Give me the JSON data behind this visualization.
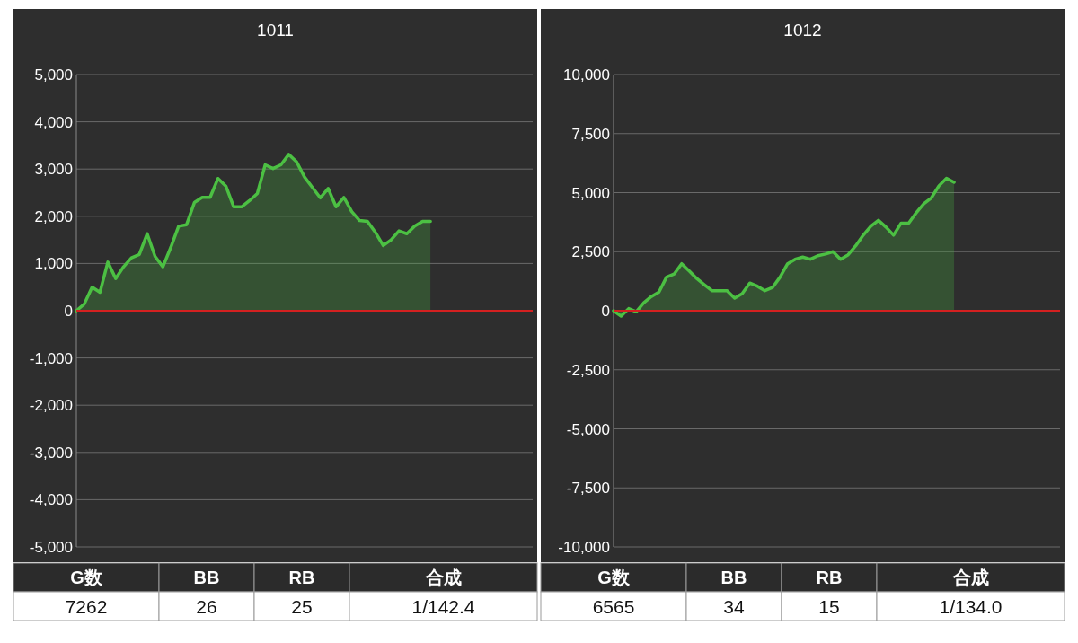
{
  "chart_data": [
    {
      "type": "area",
      "title": "1011",
      "categories": [
        null,
        null,
        null,
        null,
        null,
        null,
        null,
        null,
        null,
        null,
        null,
        null,
        null,
        null,
        null,
        null,
        null,
        null,
        null,
        null,
        null,
        null,
        null,
        null,
        null,
        null,
        null,
        null,
        null,
        null,
        null,
        null,
        null,
        null,
        null,
        null,
        null,
        null,
        null,
        null,
        null,
        null,
        null,
        null,
        null,
        null,
        null,
        null,
        null,
        null,
        null,
        null,
        null,
        null,
        null,
        null,
        null,
        null,
        null
      ],
      "series": [
        {
          "color": "#4cc043",
          "values": [
            0,
            140,
            500,
            390,
            1030,
            680,
            930,
            1120,
            1190,
            1630,
            1150,
            930,
            1340,
            1790,
            1820,
            2290,
            2400,
            2400,
            2800,
            2640,
            2200,
            2200,
            2330,
            2480,
            3090,
            3010,
            3090,
            3310,
            3150,
            2830,
            2610,
            2390,
            2590,
            2200,
            2400,
            2100,
            1910,
            1890,
            1660,
            1380,
            1500,
            1690,
            1630,
            1790,
            1890,
            1890,
            null,
            null,
            null,
            null,
            null,
            null,
            null,
            null,
            null,
            null,
            null,
            null,
            null
          ]
        }
      ],
      "ylim": [
        -5000,
        5000
      ],
      "yticks": [
        {
          "value": -5000,
          "label": "-5,000"
        },
        {
          "value": -4000,
          "label": "-4,000"
        },
        {
          "value": -3000,
          "label": "-3,000"
        },
        {
          "value": -2000,
          "label": "-2,000"
        },
        {
          "value": -1000,
          "label": "-1,000"
        },
        0,
        {
          "value": 1000,
          "label": "1,000"
        },
        {
          "value": 2000,
          "label": "2,000"
        },
        {
          "value": 3000,
          "label": "3,000"
        },
        {
          "value": 4000,
          "label": "4,000"
        },
        {
          "value": 5000,
          "label": "5,000"
        }
      ],
      "grid": "y",
      "tick_labels": "y",
      "ref_lines": [
        {
          "axis": "y",
          "value": 0,
          "color": "#d42020"
        }
      ],
      "annotations": [
        "G数",
        "BB",
        "RB",
        "合成",
        "7262",
        "26",
        "25",
        "1/142.4"
      ]
    },
    {
      "type": "area",
      "title": "1012",
      "categories": [
        null,
        null,
        null,
        null,
        null,
        null,
        null,
        null,
        null,
        null,
        null,
        null,
        null,
        null,
        null,
        null,
        null,
        null,
        null,
        null,
        null,
        null,
        null,
        null,
        null,
        null,
        null,
        null,
        null,
        null,
        null,
        null,
        null,
        null,
        null,
        null,
        null,
        null,
        null,
        null,
        null,
        null,
        null,
        null,
        null,
        null,
        null,
        null,
        null,
        null,
        null,
        null,
        null,
        null,
        null,
        null,
        null,
        null,
        null,
        null
      ],
      "series": [
        {
          "color": "#4cc043",
          "values": [
            0,
            -230,
            90,
            -40,
            340,
            600,
            790,
            1420,
            1550,
            1990,
            1680,
            1360,
            1100,
            850,
            850,
            850,
            530,
            720,
            1170,
            1040,
            850,
            980,
            1420,
            1990,
            2180,
            2270,
            2180,
            2330,
            2400,
            2500,
            2180,
            2370,
            2750,
            3200,
            3580,
            3830,
            3540,
            3200,
            3710,
            3710,
            4150,
            4530,
            4780,
            5290,
            5610,
            5440,
            null,
            null,
            null,
            null,
            null,
            null,
            null,
            null,
            null,
            null,
            null,
            null,
            null,
            null
          ]
        }
      ],
      "ylim": [
        -10000,
        10000
      ],
      "yticks": [
        {
          "value": -10000,
          "label": "-10,000"
        },
        {
          "value": -7500,
          "label": "-7,500"
        },
        {
          "value": -5000,
          "label": "-5,000"
        },
        {
          "value": -2500,
          "label": "-2,500"
        },
        0,
        {
          "value": 2500,
          "label": "2,500"
        },
        {
          "value": 5000,
          "label": "5,000"
        },
        {
          "value": 7500,
          "label": "7,500"
        },
        {
          "value": 10000,
          "label": "10,000"
        }
      ],
      "grid": "y",
      "tick_labels": "y",
      "ref_lines": [
        {
          "axis": "y",
          "value": 0,
          "color": "#d42020"
        }
      ],
      "annotations": [
        "G数",
        "BB",
        "RB",
        "合成",
        "6565",
        "34",
        "15",
        "1/134.0"
      ]
    }
  ]
}
